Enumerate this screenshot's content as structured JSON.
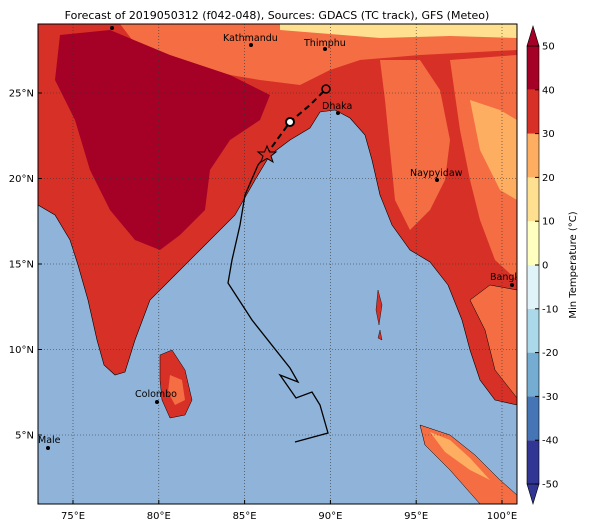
{
  "title": "Forecast of 2019050312 (f042-048), Sources: GDACS (TC track), GFS (Meteo)",
  "map": {
    "lon_ticks": [
      {
        "value": 75,
        "label": "75°E"
      },
      {
        "value": 80,
        "label": "80°E"
      },
      {
        "value": 85,
        "label": "85°E"
      },
      {
        "value": 90,
        "label": "90°E"
      },
      {
        "value": 95,
        "label": "95°E"
      },
      {
        "value": 100,
        "label": "100°E"
      }
    ],
    "lat_ticks": [
      {
        "value": 5,
        "label": "5°N"
      },
      {
        "value": 10,
        "label": "10°N"
      },
      {
        "value": 15,
        "label": "15°N"
      },
      {
        "value": 20,
        "label": "20°N"
      },
      {
        "value": 25,
        "label": "25°N"
      }
    ],
    "cities": [
      "Kathmandu",
      "Thimphu",
      "Dhaka",
      "Naypyidaw",
      "Bangko",
      "Colombo",
      "Male"
    ]
  },
  "colorbar": {
    "label": "Min Temperature (°C)",
    "ticks": [
      -50,
      -40,
      -30,
      -20,
      -10,
      0,
      10,
      20,
      30,
      40,
      50
    ],
    "colors": [
      "#313695",
      "#4575b4",
      "#74add1",
      "#abd9e9",
      "#e0f3f8",
      "#ffffbf",
      "#fee090",
      "#fdae61",
      "#d73027",
      "#a50026"
    ]
  }
}
